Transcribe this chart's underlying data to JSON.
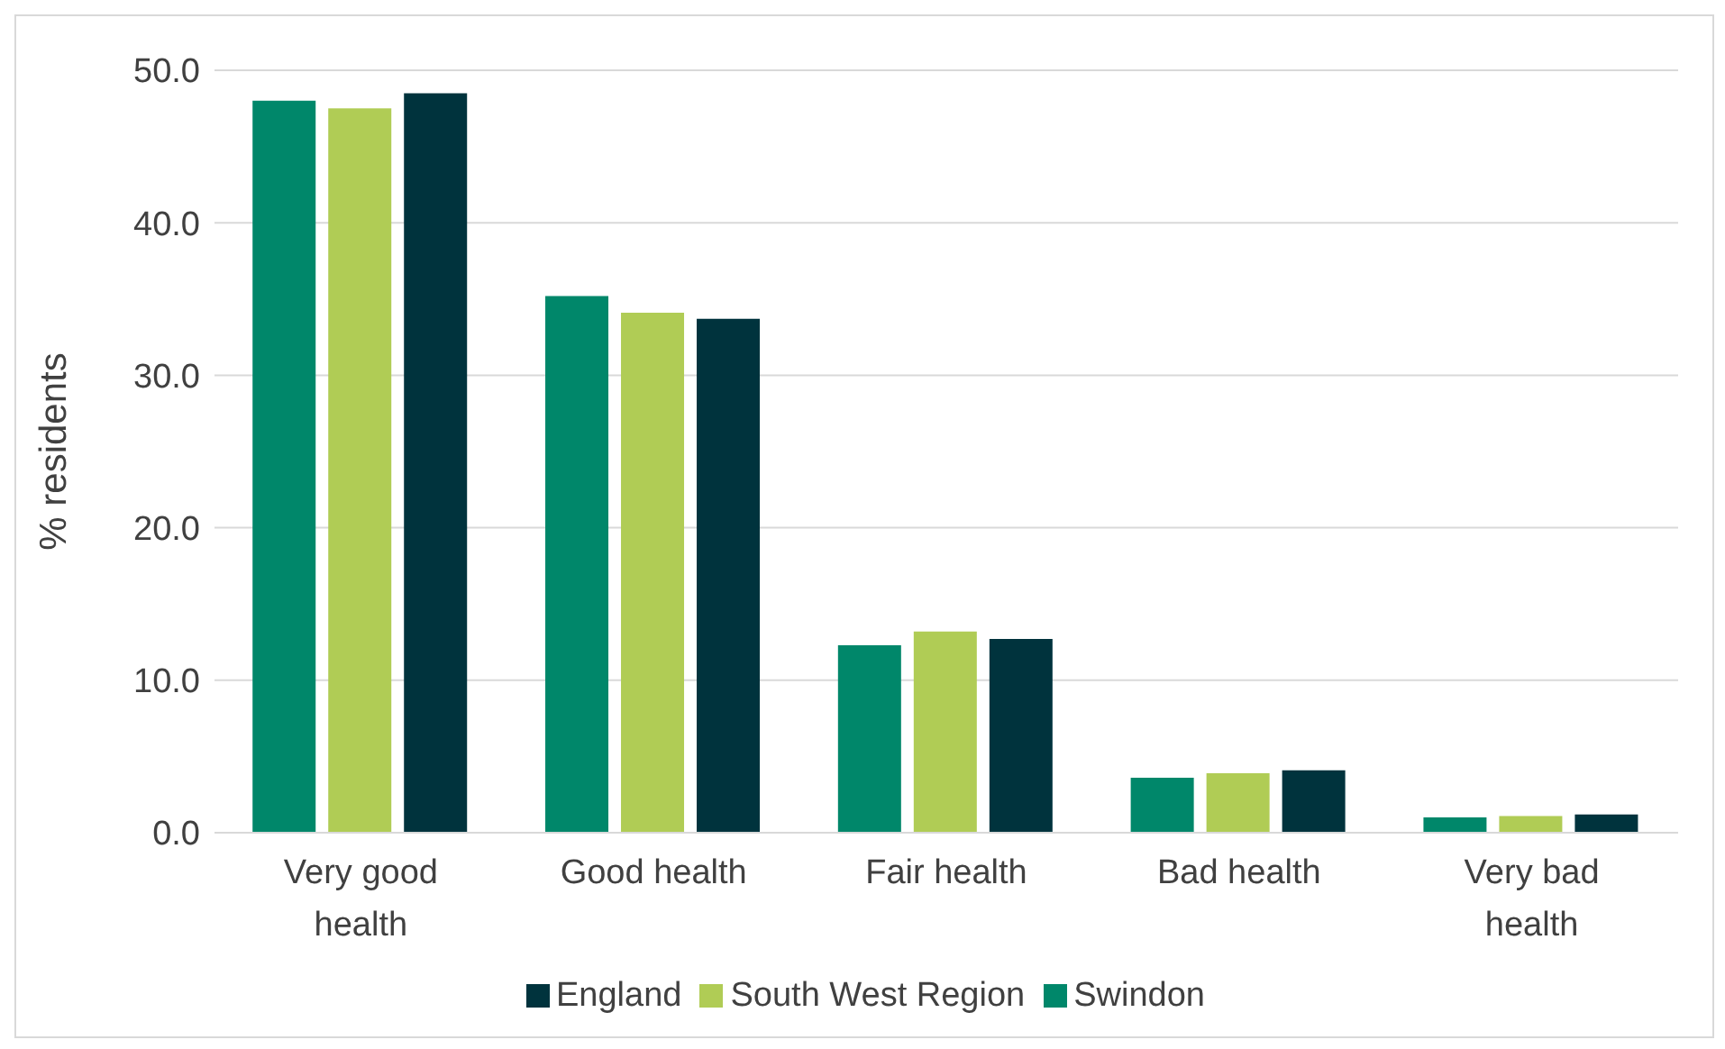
{
  "chart_data": {
    "type": "bar",
    "ylabel": "% residents",
    "categories": [
      "Very good health",
      "Good health",
      "Fair health",
      "Bad health",
      "Very bad health"
    ],
    "series": [
      {
        "name": "Swindon",
        "color": "#00876a",
        "values": [
          48.0,
          35.2,
          12.3,
          3.6,
          1.0
        ]
      },
      {
        "name": "South West Region",
        "color": "#b0cc55",
        "values": [
          47.5,
          34.1,
          13.2,
          3.9,
          1.1
        ]
      },
      {
        "name": "England",
        "color": "#00333d",
        "values": [
          48.5,
          33.7,
          12.7,
          4.1,
          1.2
        ]
      }
    ],
    "ylim": [
      0,
      50
    ],
    "yticks": [
      {
        "value": 0,
        "label": "0.0"
      },
      {
        "value": 10,
        "label": "10.0"
      },
      {
        "value": 20,
        "label": "20.0"
      },
      {
        "value": 30,
        "label": "30.0"
      },
      {
        "value": 40,
        "label": "40.0"
      },
      {
        "value": 50,
        "label": "50.0"
      }
    ],
    "grid": "y",
    "legend": "bottom"
  }
}
